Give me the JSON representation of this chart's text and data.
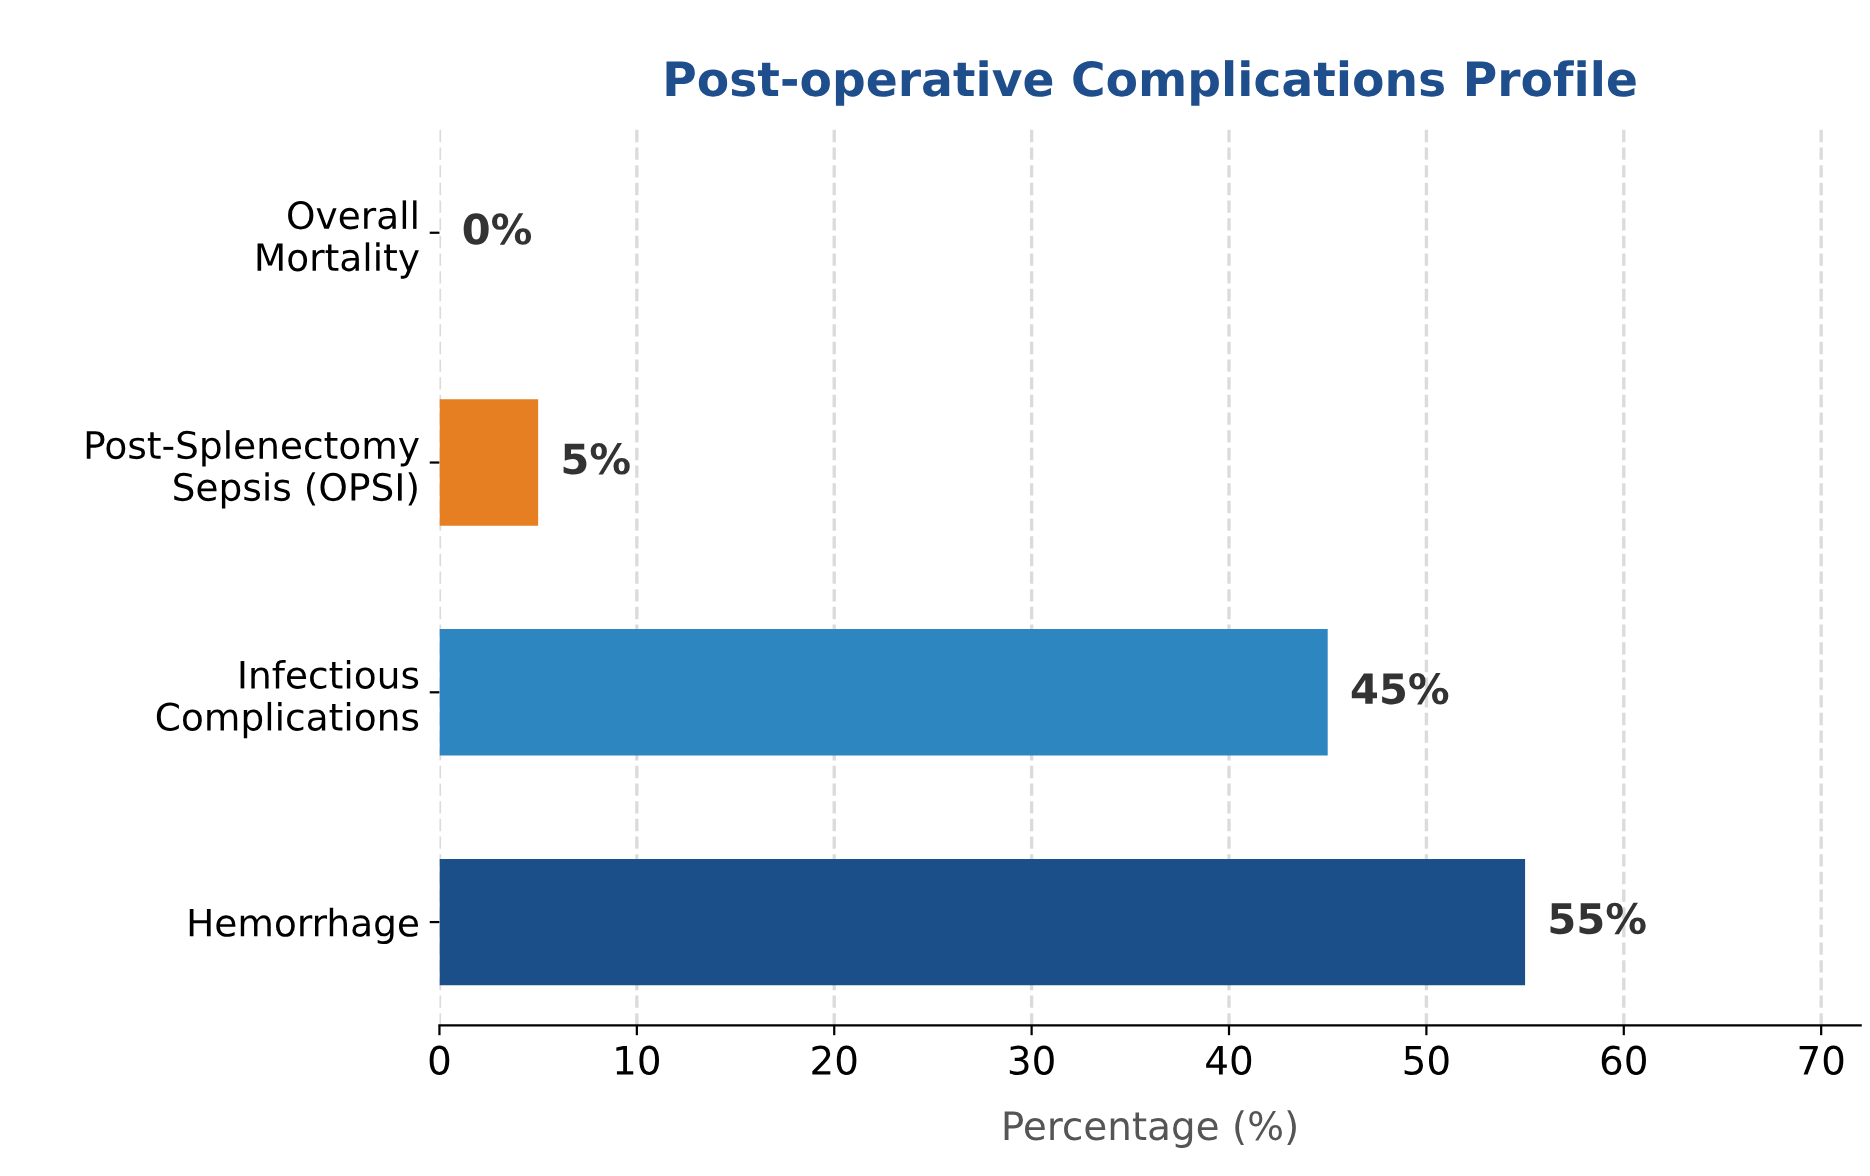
{
  "chart_data": {
    "type": "bar",
    "orientation": "horizontal",
    "title": "Post-operative Complications Profile",
    "xlabel": "Percentage (%)",
    "categories": [
      "Overall\nMortality",
      "Post-Splenectomy\nSepsis (OPSI)",
      "Infectious\nComplications",
      "Hemorrhage"
    ],
    "values": [
      0,
      5,
      45,
      55
    ],
    "colors": [
      "#c0392b",
      "#e67e22",
      "#2e86c1",
      "#1b4f8a"
    ],
    "value_labels": [
      "0%",
      "5%",
      "45%",
      "55%"
    ],
    "xlim": [
      0,
      72
    ],
    "xticks": [
      0,
      10,
      20,
      30,
      40,
      50,
      60,
      70
    ],
    "grid": "x",
    "legend": false
  }
}
